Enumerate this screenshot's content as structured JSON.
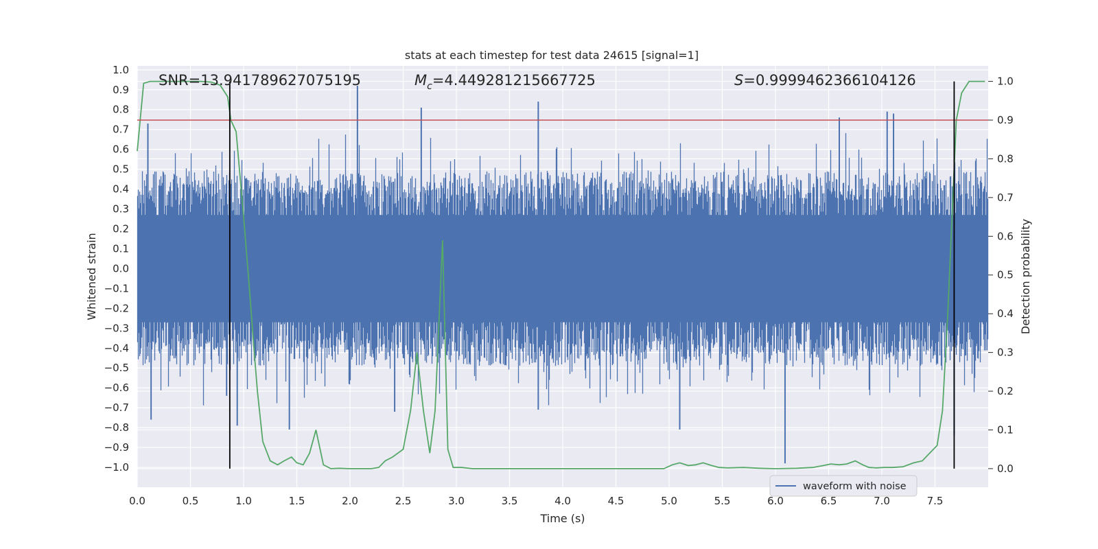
{
  "chart_data": {
    "type": "line",
    "title": "stats at each timestep for test data 24615 [signal=1]",
    "xlabel": "Time (s)",
    "ylabel": "Whitened strain",
    "ylabel_right": "Detection probability",
    "xlim": [
      0.0,
      8.0
    ],
    "ylim": [
      -1.1,
      1.02
    ],
    "ylim_right": [
      -0.048,
      1.04
    ],
    "x_ticks": [
      "0.0",
      "0.5",
      "1.0",
      "1.5",
      "2.0",
      "2.5",
      "3.0",
      "3.5",
      "4.0",
      "4.5",
      "5.0",
      "5.5",
      "6.0",
      "6.5",
      "7.0",
      "7.5"
    ],
    "y_ticks": [
      "1.0",
      "0.9",
      "0.8",
      "0.7",
      "0.6",
      "0.5",
      "0.4",
      "0.3",
      "0.2",
      "0.1",
      "0.0",
      "-0.1",
      "-0.2",
      "-0.3",
      "-0.4",
      "-0.5",
      "-0.6",
      "-0.7",
      "-0.8",
      "-0.9",
      "-1.0"
    ],
    "y_ticks_right": [
      "1.0",
      "0.9",
      "0.8",
      "0.7",
      "0.6",
      "0.5",
      "0.4",
      "0.3",
      "0.2",
      "0.1",
      "0.0"
    ],
    "annotations": {
      "snr": "SNR=13.941789627075195",
      "mc_symbol": "M",
      "mc_sub": "c",
      "mc_value": "=4.449281215667725",
      "s_symbol": "S",
      "s_value": "=0.9999462366104126"
    },
    "threshold": {
      "value": 0.9,
      "axis": "right",
      "color": "#c44e52"
    },
    "vlines": [
      0.87,
      7.68
    ],
    "legend": {
      "label": "waveform with noise",
      "location": "lower-right"
    },
    "colors": {
      "waveform": "#4c72b0",
      "probability": "#55a868",
      "threshold": "#c44e52",
      "vline": "#000000",
      "background": "#eaeaf2"
    },
    "series": [
      {
        "name": "waveform with noise",
        "axis": "left",
        "noise_envelope": {
          "typical_max": 0.35,
          "typical_min": -0.35,
          "spikes_up_to": 0.92,
          "spikes_down_to": -1.0
        },
        "spikes": [
          {
            "x": 0.1,
            "y": 0.73
          },
          {
            "x": 0.13,
            "y": -0.76
          },
          {
            "x": 0.84,
            "y": -0.64
          },
          {
            "x": 0.94,
            "y": -0.79
          },
          {
            "x": 1.43,
            "y": -0.81
          },
          {
            "x": 2.07,
            "y": 0.92
          },
          {
            "x": 2.42,
            "y": -0.72
          },
          {
            "x": 2.67,
            "y": 0.81
          },
          {
            "x": 3.77,
            "y": 0.84
          },
          {
            "x": 3.77,
            "y": -0.71
          },
          {
            "x": 5.1,
            "y": -0.81
          },
          {
            "x": 6.09,
            "y": -0.98
          },
          {
            "x": 6.6,
            "y": 0.76
          },
          {
            "x": 7.05,
            "y": 0.79
          },
          {
            "x": 7.11,
            "y": 0.78
          },
          {
            "x": 7.68,
            "y": -0.84
          }
        ]
      },
      {
        "name": "detection probability",
        "axis": "right",
        "x": [
          0.0,
          0.06,
          0.12,
          0.2,
          0.3,
          0.4,
          0.5,
          0.6,
          0.7,
          0.78,
          0.85,
          0.88,
          0.93,
          1.0,
          1.05,
          1.1,
          1.13,
          1.18,
          1.25,
          1.32,
          1.38,
          1.45,
          1.5,
          1.56,
          1.62,
          1.68,
          1.75,
          1.82,
          1.9,
          2.0,
          2.1,
          2.2,
          2.27,
          2.33,
          2.4,
          2.5,
          2.57,
          2.63,
          2.69,
          2.75,
          2.8,
          2.87,
          2.92,
          2.97,
          3.05,
          3.15,
          3.3,
          3.5,
          3.7,
          3.9,
          4.1,
          4.3,
          4.5,
          4.7,
          4.85,
          4.95,
          5.03,
          5.1,
          5.18,
          5.25,
          5.32,
          5.4,
          5.47,
          5.55,
          5.7,
          5.85,
          6.0,
          6.2,
          6.35,
          6.45,
          6.52,
          6.6,
          6.67,
          6.75,
          6.82,
          6.88,
          6.95,
          7.02,
          7.1,
          7.2,
          7.3,
          7.38,
          7.45,
          7.52,
          7.57,
          7.62,
          7.66,
          7.7,
          7.75,
          7.82,
          7.9,
          7.97
        ],
        "values": [
          0.82,
          0.995,
          1.0,
          1.0,
          1.0,
          1.0,
          1.0,
          1.0,
          0.998,
          0.99,
          0.96,
          0.9,
          0.87,
          0.65,
          0.48,
          0.3,
          0.2,
          0.07,
          0.02,
          0.01,
          0.02,
          0.03,
          0.015,
          0.01,
          0.04,
          0.1,
          0.01,
          0.0,
          0.001,
          0.0,
          0.0,
          0.0,
          0.003,
          0.02,
          0.03,
          0.05,
          0.15,
          0.3,
          0.15,
          0.04,
          0.15,
          0.59,
          0.05,
          0.003,
          0.003,
          0.0,
          0.0,
          0.0,
          0.0,
          0.0,
          0.0,
          0.0,
          0.0,
          0.0,
          0.0,
          0.0,
          0.01,
          0.015,
          0.008,
          0.01,
          0.015,
          0.008,
          0.003,
          0.002,
          0.003,
          0.001,
          0.0,
          0.001,
          0.003,
          0.008,
          0.012,
          0.01,
          0.012,
          0.02,
          0.01,
          0.003,
          0.002,
          0.003,
          0.003,
          0.005,
          0.015,
          0.02,
          0.04,
          0.06,
          0.15,
          0.4,
          0.65,
          0.9,
          0.97,
          1.0,
          1.0,
          1.0
        ]
      }
    ]
  }
}
